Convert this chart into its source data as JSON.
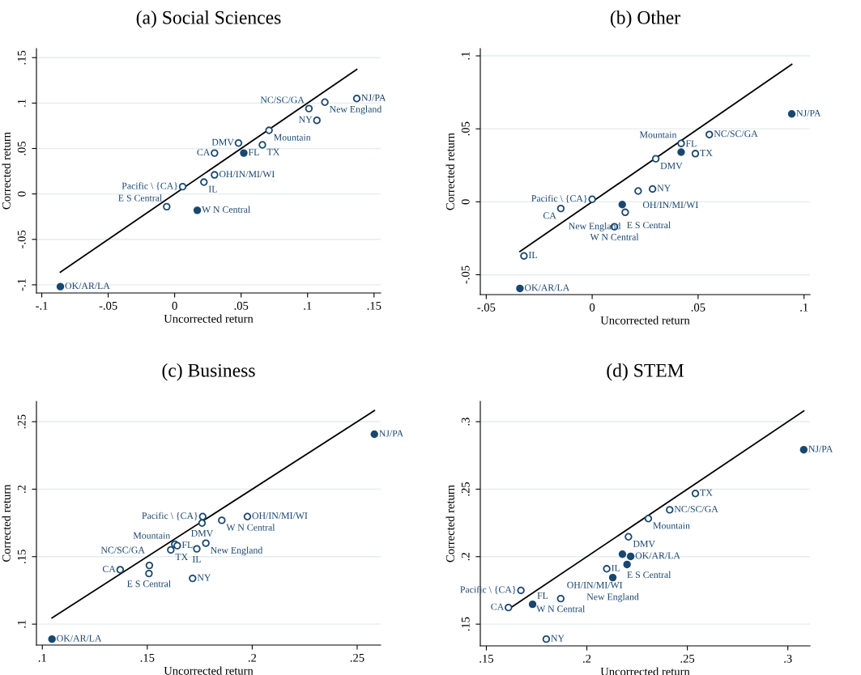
{
  "chart_data": [
    {
      "type": "scatter",
      "title": "(a) Social Sciences",
      "xlabel": "Uncorrected return",
      "ylabel": "Corrected return",
      "grid": "y",
      "xlim": [
        -0.104,
        0.155
      ],
      "ylim": [
        -0.109,
        0.16
      ],
      "xticks": [
        {
          "value": -0.1,
          "label": "-.1"
        },
        {
          "value": -0.05,
          "label": "-.05"
        },
        0,
        {
          "value": 0.05,
          "label": ".05"
        },
        {
          "value": 0.1,
          "label": ".1"
        },
        {
          "value": 0.15,
          "label": ".15"
        }
      ],
      "yticks": [
        {
          "value": -0.1,
          "label": "-.1"
        },
        {
          "value": -0.05,
          "label": "-.05"
        },
        0,
        {
          "value": 0.05,
          "label": ".05"
        },
        {
          "value": 0.1,
          "label": ".1"
        },
        {
          "value": 0.15,
          "label": ".15"
        }
      ],
      "series": [
        {
          "color": "#1a476f",
          "marker": "circle",
          "x": [
            0.137,
            0.113,
            0.101,
            0.107,
            0.071,
            0.048,
            0.066,
            0.03,
            0.03,
            0.022,
            0.006,
            -0.006
          ],
          "values": [
            0.105,
            0.101,
            0.094,
            0.081,
            0.07,
            0.056,
            0.054,
            0.045,
            0.021,
            0.013,
            0.008,
            -0.014
          ]
        },
        {
          "color": "#1a476f",
          "marker": "circle",
          "x": [
            0.052,
            0.017,
            -0.086
          ],
          "values": [
            0.045,
            -0.018,
            -0.102
          ]
        },
        {
          "type": "line",
          "color": "#000000",
          "marker": "none",
          "x": [
            -0.086,
            0.137
          ],
          "values": [
            -0.086,
            0.137
          ]
        }
      ],
      "annotations": [
        {
          "text": "NJ/PA",
          "x": 0.137,
          "y": 0.105
        },
        {
          "text": "New England",
          "x": 0.113,
          "y": 0.101
        },
        {
          "text": "NC/SC/GA",
          "x": 0.101,
          "y": 0.094
        },
        {
          "text": "NY",
          "x": 0.107,
          "y": 0.081
        },
        {
          "text": "Mountain",
          "x": 0.071,
          "y": 0.07
        },
        {
          "text": "DMV",
          "x": 0.048,
          "y": 0.056
        },
        {
          "text": "TX",
          "x": 0.066,
          "y": 0.054
        },
        {
          "text": "CA",
          "x": 0.03,
          "y": 0.045
        },
        {
          "text": "OH/IN/MI/WI",
          "x": 0.03,
          "y": 0.021
        },
        {
          "text": "IL",
          "x": 0.022,
          "y": 0.013
        },
        {
          "text": "Pacific \\ {CA}",
          "x": 0.006,
          "y": 0.008
        },
        {
          "text": "E S Central",
          "x": -0.006,
          "y": -0.014
        },
        {
          "text": "FL",
          "x": 0.052,
          "y": 0.045
        },
        {
          "text": "W N Central",
          "x": 0.017,
          "y": -0.018
        },
        {
          "text": "OK/AR/LA",
          "x": -0.086,
          "y": -0.102
        }
      ]
    },
    {
      "type": "scatter",
      "title": "(b) Other",
      "xlabel": "Uncorrected return",
      "ylabel": "Corrected return",
      "grid": "y",
      "xlim": [
        -0.0528,
        0.1028
      ],
      "ylim": [
        -0.0636,
        0.105
      ],
      "xticks": [
        {
          "value": -0.05,
          "label": "-.05"
        },
        0,
        {
          "value": 0.05,
          "label": ".05"
        },
        {
          "value": 0.1,
          "label": ".1"
        }
      ],
      "yticks": [
        {
          "value": -0.05,
          "label": "-.05"
        },
        0,
        {
          "value": 0.05,
          "label": ".05"
        },
        {
          "value": 0.1,
          "label": ".1"
        }
      ],
      "series": [
        {
          "color": "#1a476f",
          "marker": "circle",
          "x": [
            0.0553,
            0.042,
            0.0487,
            0.03,
            0.0285,
            0.0217,
            0.0,
            -0.0148,
            0.0156,
            0.0105,
            -0.0322
          ],
          "values": [
            0.0461,
            0.04,
            0.033,
            0.0295,
            0.0088,
            0.0074,
            0.0017,
            -0.0046,
            -0.0072,
            -0.0171,
            -0.0371
          ]
        },
        {
          "color": "#1a476f",
          "marker": "circle",
          "x": [
            0.0942,
            0.042,
            0.0142,
            -0.0341
          ],
          "values": [
            0.0602,
            0.034,
            -0.0019,
            -0.0594
          ]
        },
        {
          "type": "line",
          "color": "#000000",
          "marker": "none",
          "x": [
            -0.0341,
            0.0942
          ],
          "values": [
            -0.0341,
            0.0942
          ]
        }
      ],
      "annotations": [
        {
          "text": "NJ/PA",
          "x": 0.0942,
          "y": 0.0602
        },
        {
          "text": "NC/SC/GA",
          "x": 0.0553,
          "y": 0.0461
        },
        {
          "text": "Mountain",
          "x": 0.042,
          "y": 0.04
        },
        {
          "text": "FL",
          "x": 0.042,
          "y": 0.034
        },
        {
          "text": "TX",
          "x": 0.0487,
          "y": 0.033
        },
        {
          "text": "DMV",
          "x": 0.03,
          "y": 0.0295
        },
        {
          "text": "NY",
          "x": 0.0285,
          "y": 0.0088
        },
        {
          "text": "OH/IN/MI/WI",
          "x": 0.0217,
          "y": 0.0074
        },
        {
          "text": "Pacific \\ {CA}",
          "x": 0.0,
          "y": 0.0017
        },
        {
          "text": "CA",
          "x": -0.0148,
          "y": -0.0046
        },
        {
          "text": "E S Central",
          "x": 0.0142,
          "y": -0.0019
        },
        {
          "text": "New England",
          "x": 0.0156,
          "y": -0.0072
        },
        {
          "text": "W N Central",
          "x": 0.0105,
          "y": -0.0171
        },
        {
          "text": "IL",
          "x": -0.0322,
          "y": -0.0371
        },
        {
          "text": "OK/AR/LA",
          "x": -0.0341,
          "y": -0.0594
        }
      ]
    },
    {
      "type": "scatter",
      "title": "(c) Business",
      "xlabel": "Uncorrected return",
      "ylabel": "Corrected return",
      "grid": "y",
      "xlim": [
        0.0972,
        0.2612
      ],
      "ylim": [
        0.0845,
        0.265
      ],
      "xticks": [
        {
          "value": 0.1,
          "label": ".1"
        },
        {
          "value": 0.15,
          "label": ".15"
        },
        {
          "value": 0.2,
          "label": ".2"
        },
        {
          "value": 0.25,
          "label": ".25"
        }
      ],
      "yticks": [
        {
          "value": 0.1,
          "label": ".1"
        },
        {
          "value": 0.15,
          "label": ".15"
        },
        {
          "value": 0.2,
          "label": ".2"
        },
        {
          "value": 0.25,
          "label": ".25"
        }
      ],
      "series": [
        {
          "color": "#1a476f",
          "marker": "circle",
          "x": [
            0.1764,
            0.1977,
            0.1855,
            0.1761,
            0.1631,
            0.1643,
            0.1779,
            0.1612,
            0.1736,
            0.151,
            0.1371,
            0.1508,
            0.1716
          ],
          "values": [
            0.1797,
            0.1797,
            0.1769,
            0.1749,
            0.1592,
            0.1582,
            0.16,
            0.155,
            0.1558,
            0.1435,
            0.1403,
            0.1375,
            0.1339
          ]
        },
        {
          "color": "#1a476f",
          "marker": "circle",
          "x": [
            0.2582,
            0.1046
          ],
          "values": [
            0.2407,
            0.0889
          ]
        },
        {
          "type": "line",
          "color": "#000000",
          "marker": "none",
          "x": [
            0.1046,
            0.2582
          ],
          "values": [
            0.1046,
            0.2582
          ]
        }
      ],
      "annotations": [
        {
          "text": "NJ/PA",
          "x": 0.2582,
          "y": 0.2407
        },
        {
          "text": "Pacific \\ {CA}",
          "x": 0.1764,
          "y": 0.1797
        },
        {
          "text": "OH/IN/MI/WI",
          "x": 0.1977,
          "y": 0.1797
        },
        {
          "text": "W N Central",
          "x": 0.1855,
          "y": 0.1769
        },
        {
          "text": "DMV",
          "x": 0.1761,
          "y": 0.1749
        },
        {
          "text": "Mountain",
          "x": 0.1631,
          "y": 0.1592
        },
        {
          "text": "FL",
          "x": 0.1643,
          "y": 0.1582
        },
        {
          "text": "New England",
          "x": 0.1779,
          "y": 0.16
        },
        {
          "text": "TX",
          "x": 0.1612,
          "y": 0.155
        },
        {
          "text": "IL",
          "x": 0.1736,
          "y": 0.1558
        },
        {
          "text": "NC/SC/GA",
          "x": 0.151,
          "y": 0.1435
        },
        {
          "text": "CA",
          "x": 0.1371,
          "y": 0.1403
        },
        {
          "text": "E S Central",
          "x": 0.1508,
          "y": 0.1375
        },
        {
          "text": "NY",
          "x": 0.1716,
          "y": 0.1339
        },
        {
          "text": "OK/AR/LA",
          "x": 0.1046,
          "y": 0.0889
        }
      ]
    },
    {
      "type": "scatter",
      "title": "(d) STEM",
      "xlabel": "Uncorrected return",
      "ylabel": "Corrected return",
      "grid": "y",
      "xlim": [
        0.147,
        0.311
      ],
      "ylim": [
        0.1339,
        0.315
      ],
      "xticks": [
        {
          "value": 0.15,
          "label": ".15"
        },
        {
          "value": 0.2,
          "label": ".2"
        },
        {
          "value": 0.25,
          "label": ".25"
        },
        {
          "value": 0.3,
          "label": ".3"
        }
      ],
      "yticks": [
        {
          "value": 0.15,
          "label": ".15"
        },
        {
          "value": 0.2,
          "label": ".2"
        },
        {
          "value": 0.25,
          "label": ".25"
        },
        {
          "value": 0.3,
          "label": ".3"
        }
      ],
      "series": [
        {
          "color": "#1a476f",
          "marker": "circle",
          "x": [
            0.254,
            0.2412,
            0.2306,
            0.2207,
            0.2099,
            0.1672,
            0.187,
            0.161,
            0.1798
          ],
          "values": [
            0.2468,
            0.2347,
            0.2282,
            0.2147,
            0.191,
            0.175,
            0.1689,
            0.1623,
            0.1389
          ]
        },
        {
          "color": "#1a476f",
          "marker": "circle",
          "x": [
            0.3079,
            0.2177,
            0.2218,
            0.22,
            0.2129,
            0.173
          ],
          "values": [
            0.2792,
            0.2018,
            0.2002,
            0.1942,
            0.1845,
            0.1647
          ]
        },
        {
          "type": "line",
          "color": "#000000",
          "marker": "none",
          "x": [
            0.161,
            0.3079
          ],
          "values": [
            0.161,
            0.3079
          ]
        }
      ],
      "annotations": [
        {
          "text": "NJ/PA",
          "x": 0.3079,
          "y": 0.2792
        },
        {
          "text": "TX",
          "x": 0.254,
          "y": 0.2468
        },
        {
          "text": "NC/SC/GA",
          "x": 0.2412,
          "y": 0.2347
        },
        {
          "text": "Mountain",
          "x": 0.2306,
          "y": 0.2282
        },
        {
          "text": "DMV",
          "x": 0.2207,
          "y": 0.2147
        },
        {
          "text": "E S Central",
          "x": 0.2177,
          "y": 0.2018
        },
        {
          "text": "OK/AR/LA",
          "x": 0.2218,
          "y": 0.2002
        },
        {
          "text": "OH/IN/MI/WI",
          "x": 0.22,
          "y": 0.1942
        },
        {
          "text": "IL",
          "x": 0.2099,
          "y": 0.191
        },
        {
          "text": "New England",
          "x": 0.2129,
          "y": 0.1845
        },
        {
          "text": "Pacific \\ {CA}",
          "x": 0.1672,
          "y": 0.175
        },
        {
          "text": "W N Central",
          "x": 0.187,
          "y": 0.1689
        },
        {
          "text": "FL",
          "x": 0.173,
          "y": 0.1647
        },
        {
          "text": "CA",
          "x": 0.161,
          "y": 0.1623
        },
        {
          "text": "NY",
          "x": 0.1798,
          "y": 0.1389
        }
      ]
    }
  ]
}
